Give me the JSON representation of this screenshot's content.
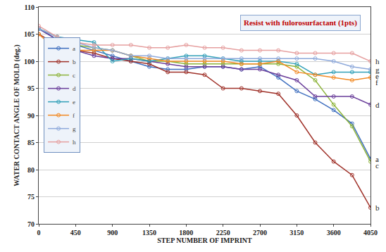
{
  "chart_data": {
    "type": "line",
    "annotation": "Resist with fulorosurfactant (1pts)",
    "x_label": "STEP NUMBER OF IMPRINT",
    "y_label": "WATER CONTACT ANGLE OF MOLD (deg.)",
    "x": [
      0,
      225,
      450,
      675,
      900,
      1125,
      1350,
      1575,
      1800,
      2025,
      2250,
      2475,
      2700,
      2925,
      3150,
      3375,
      3600,
      3825,
      4050
    ],
    "xlim": [
      0,
      4050
    ],
    "xticks": [
      0,
      450,
      900,
      1350,
      1800,
      2250,
      2700,
      3150,
      3600,
      4050
    ],
    "ylim": [
      70,
      110
    ],
    "yticks": [
      70,
      75,
      80,
      85,
      90,
      95,
      100,
      105,
      110
    ],
    "grid": true,
    "legend": "upper left",
    "marker": "open_circle",
    "series": [
      {
        "name": "a",
        "color": "#3f6fbf",
        "values": [
          106,
          104,
          103,
          102,
          101,
          100,
          99,
          98.5,
          98.5,
          99,
          99,
          98.5,
          99,
          97,
          94.5,
          93,
          91,
          88.5,
          82
        ]
      },
      {
        "name": "b",
        "color": "#a0322a",
        "values": [
          105,
          103,
          102,
          101.5,
          100.5,
          100,
          99.5,
          98,
          98,
          97.5,
          95,
          95,
          94.5,
          94,
          90,
          85,
          81.5,
          79,
          73
        ]
      },
      {
        "name": "c",
        "color": "#8db43a",
        "values": [
          106,
          104.5,
          103,
          102.5,
          102,
          101,
          100,
          100,
          99.5,
          99.5,
          99.5,
          99.5,
          99.5,
          99.5,
          99,
          96.5,
          92,
          88,
          81.5
        ]
      },
      {
        "name": "d",
        "color": "#6a3e9a",
        "values": [
          106,
          104,
          102,
          101,
          100.5,
          100.5,
          100,
          99.5,
          99,
          99,
          99,
          98.5,
          98.5,
          97.5,
          96.5,
          93.5,
          93.5,
          93.5,
          92
        ]
      },
      {
        "name": "e",
        "color": "#31a0b8",
        "values": [
          106,
          104.5,
          104,
          103.5,
          100,
          100.5,
          100,
          100.5,
          101,
          101,
          100.5,
          100,
          100,
          100,
          99.5,
          97.5,
          98,
          98,
          98
        ]
      },
      {
        "name": "f",
        "color": "#f28a24",
        "values": [
          105,
          102,
          102,
          102,
          102,
          101,
          100.5,
          100,
          100,
          100,
          100,
          99.5,
          99.5,
          100,
          98,
          97.5,
          97,
          96.5,
          97
        ]
      },
      {
        "name": "g",
        "color": "#8ea9db",
        "values": [
          106,
          104.5,
          103.5,
          102.5,
          102,
          101,
          101,
          100.5,
          100.5,
          100.5,
          100.5,
          100.5,
          100.5,
          100.5,
          100.5,
          100.5,
          100,
          99,
          98.5
        ]
      },
      {
        "name": "h",
        "color": "#e6a0a0",
        "values": [
          106.5,
          104.5,
          103.5,
          103,
          103,
          103,
          102.5,
          102.5,
          103,
          102.5,
          102.5,
          102,
          102,
          102,
          101.5,
          101.5,
          101.5,
          101.5,
          100
        ]
      }
    ]
  }
}
